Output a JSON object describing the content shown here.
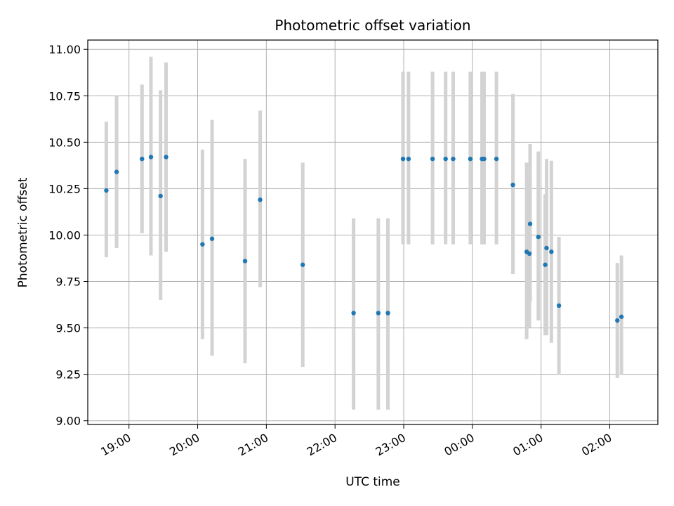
{
  "chart_data": {
    "type": "scatter",
    "title": "Photometric offset variation",
    "xlabel": "UTC time",
    "ylabel": "Photometric offset",
    "x_unit": "hours since 00:00 UTC of the first night",
    "xlim": [
      18.4,
      26.7
    ],
    "ylim": [
      8.98,
      11.05
    ],
    "grid": true,
    "x_ticks": [
      {
        "value": 19,
        "label": "19:00"
      },
      {
        "value": 20,
        "label": "20:00"
      },
      {
        "value": 21,
        "label": "21:00"
      },
      {
        "value": 22,
        "label": "22:00"
      },
      {
        "value": 23,
        "label": "23:00"
      },
      {
        "value": 24,
        "label": "00:00"
      },
      {
        "value": 25,
        "label": "01:00"
      },
      {
        "value": 26,
        "label": "02:00"
      }
    ],
    "y_ticks": [
      {
        "value": 9.0,
        "label": "9.00"
      },
      {
        "value": 9.25,
        "label": "9.25"
      },
      {
        "value": 9.5,
        "label": "9.50"
      },
      {
        "value": 9.75,
        "label": "9.75"
      },
      {
        "value": 10.0,
        "label": "10.00"
      },
      {
        "value": 10.25,
        "label": "10.25"
      },
      {
        "value": 10.5,
        "label": "10.50"
      },
      {
        "value": 10.75,
        "label": "10.75"
      },
      {
        "value": 11.0,
        "label": "11.00"
      }
    ],
    "colors": {
      "point": "#1f77b4",
      "errorbar": "#d3d3d3",
      "grid": "#b0b0b0"
    },
    "series": [
      {
        "points": [
          {
            "x": 18.67,
            "y": 10.24,
            "ylo": 9.88,
            "yhi": 10.61
          },
          {
            "x": 18.82,
            "y": 10.34,
            "ylo": 9.93,
            "yhi": 10.75
          },
          {
            "x": 19.19,
            "y": 10.41,
            "ylo": 10.01,
            "yhi": 10.81
          },
          {
            "x": 19.32,
            "y": 10.42,
            "ylo": 9.89,
            "yhi": 10.96
          },
          {
            "x": 19.46,
            "y": 10.21,
            "ylo": 9.65,
            "yhi": 10.78
          },
          {
            "x": 19.54,
            "y": 10.42,
            "ylo": 9.91,
            "yhi": 10.93
          },
          {
            "x": 20.07,
            "y": 9.95,
            "ylo": 9.44,
            "yhi": 10.46
          },
          {
            "x": 20.21,
            "y": 9.98,
            "ylo": 9.35,
            "yhi": 10.62
          },
          {
            "x": 20.69,
            "y": 9.86,
            "ylo": 9.31,
            "yhi": 10.41
          },
          {
            "x": 20.91,
            "y": 10.19,
            "ylo": 9.72,
            "yhi": 10.67
          },
          {
            "x": 21.53,
            "y": 9.84,
            "ylo": 9.29,
            "yhi": 10.39
          },
          {
            "x": 22.27,
            "y": 9.58,
            "ylo": 9.06,
            "yhi": 10.09
          },
          {
            "x": 22.63,
            "y": 9.58,
            "ylo": 9.06,
            "yhi": 10.09
          },
          {
            "x": 22.77,
            "y": 9.58,
            "ylo": 9.06,
            "yhi": 10.09
          },
          {
            "x": 22.99,
            "y": 10.41,
            "ylo": 9.95,
            "yhi": 10.88
          },
          {
            "x": 23.07,
            "y": 10.41,
            "ylo": 9.95,
            "yhi": 10.88
          },
          {
            "x": 23.42,
            "y": 10.41,
            "ylo": 9.95,
            "yhi": 10.88
          },
          {
            "x": 23.61,
            "y": 10.41,
            "ylo": 9.95,
            "yhi": 10.88
          },
          {
            "x": 23.72,
            "y": 10.41,
            "ylo": 9.95,
            "yhi": 10.88
          },
          {
            "x": 23.97,
            "y": 10.41,
            "ylo": 9.95,
            "yhi": 10.88
          },
          {
            "x": 24.14,
            "y": 10.41,
            "ylo": 9.95,
            "yhi": 10.88
          },
          {
            "x": 24.17,
            "y": 10.41,
            "ylo": 9.95,
            "yhi": 10.88
          },
          {
            "x": 24.35,
            "y": 10.41,
            "ylo": 9.95,
            "yhi": 10.88
          },
          {
            "x": 24.59,
            "y": 10.27,
            "ylo": 9.79,
            "yhi": 10.76
          },
          {
            "x": 24.79,
            "y": 9.91,
            "ylo": 9.44,
            "yhi": 10.39
          },
          {
            "x": 24.83,
            "y": 9.9,
            "ylo": 9.5,
            "yhi": 10.3
          },
          {
            "x": 24.84,
            "y": 10.06,
            "ylo": 9.64,
            "yhi": 10.49
          },
          {
            "x": 24.96,
            "y": 9.99,
            "ylo": 9.54,
            "yhi": 10.45
          },
          {
            "x": 25.06,
            "y": 9.84,
            "ylo": 9.46,
            "yhi": 10.22
          },
          {
            "x": 25.08,
            "y": 9.93,
            "ylo": 9.46,
            "yhi": 10.41
          },
          {
            "x": 25.15,
            "y": 9.91,
            "ylo": 9.42,
            "yhi": 10.4
          },
          {
            "x": 25.26,
            "y": 9.62,
            "ylo": 9.25,
            "yhi": 9.99
          },
          {
            "x": 26.11,
            "y": 9.54,
            "ylo": 9.23,
            "yhi": 9.85
          },
          {
            "x": 26.17,
            "y": 9.56,
            "ylo": 9.25,
            "yhi": 9.89
          }
        ]
      }
    ]
  }
}
